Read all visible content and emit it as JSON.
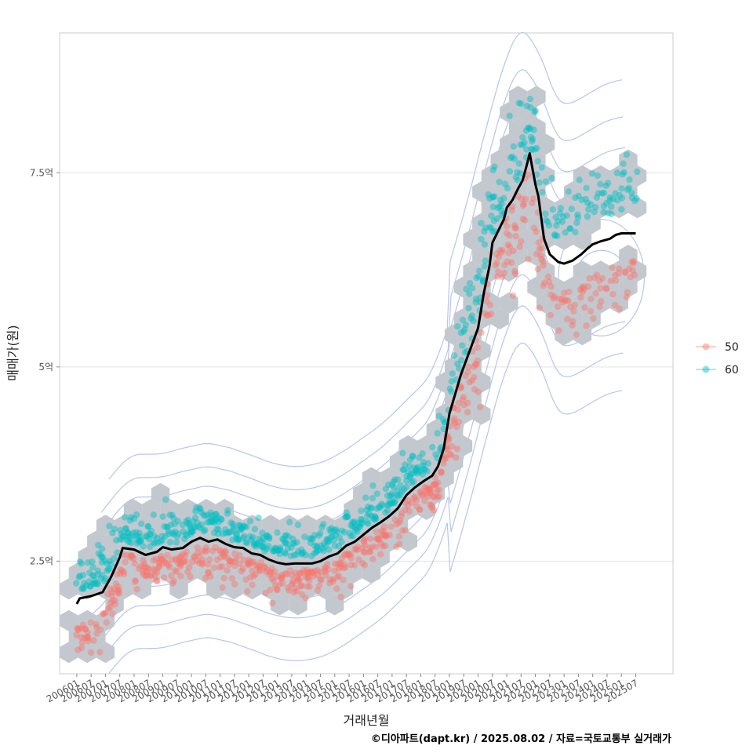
{
  "chart_data": {
    "type": "scatter",
    "xlabel": "거래년월",
    "ylabel": "매매가(원)",
    "caption": "©디아파트(dapt.kr) / 2025.08.02 / 자료=국토교통부 실거래가",
    "y_range": [
      1.05,
      9.3
    ],
    "x_range": [
      2005.4,
      2026.8
    ],
    "y_ticks": [
      {
        "value": 2.5,
        "label": "2.5억"
      },
      {
        "value": 5,
        "label": "5억"
      },
      {
        "value": 7.5,
        "label": "7.5억"
      }
    ],
    "x_ticks": [
      {
        "value": 2006.0,
        "label": "200601"
      },
      {
        "value": 2006.5,
        "label": "200607"
      },
      {
        "value": 2007.0,
        "label": "200701"
      },
      {
        "value": 2007.5,
        "label": "200707"
      },
      {
        "value": 2008.0,
        "label": "200801"
      },
      {
        "value": 2008.5,
        "label": "200807"
      },
      {
        "value": 2009.0,
        "label": "200901"
      },
      {
        "value": 2009.5,
        "label": "200907"
      },
      {
        "value": 2010.0,
        "label": "201001"
      },
      {
        "value": 2010.5,
        "label": "201007"
      },
      {
        "value": 2011.0,
        "label": "201101"
      },
      {
        "value": 2011.5,
        "label": "201107"
      },
      {
        "value": 2012.0,
        "label": "201201"
      },
      {
        "value": 2012.5,
        "label": "201207"
      },
      {
        "value": 2013.0,
        "label": "201301"
      },
      {
        "value": 2013.5,
        "label": "201307"
      },
      {
        "value": 2014.0,
        "label": "201401"
      },
      {
        "value": 2014.5,
        "label": "201407"
      },
      {
        "value": 2015.0,
        "label": "201501"
      },
      {
        "value": 2015.5,
        "label": "201507"
      },
      {
        "value": 2016.0,
        "label": "201601"
      },
      {
        "value": 2016.5,
        "label": "201607"
      },
      {
        "value": 2017.0,
        "label": "201701"
      },
      {
        "value": 2017.5,
        "label": "201707"
      },
      {
        "value": 2018.0,
        "label": "201801"
      },
      {
        "value": 2018.5,
        "label": "201807"
      },
      {
        "value": 2019.0,
        "label": "201901"
      },
      {
        "value": 2019.5,
        "label": "201907"
      },
      {
        "value": 2020.0,
        "label": "202001"
      },
      {
        "value": 2020.5,
        "label": "202007"
      },
      {
        "value": 2021.0,
        "label": "202101"
      },
      {
        "value": 2021.5,
        "label": "202107"
      },
      {
        "value": 2022.0,
        "label": "202201"
      },
      {
        "value": 2022.5,
        "label": "202207"
      },
      {
        "value": 2023.0,
        "label": "202301"
      },
      {
        "value": 2023.5,
        "label": "202307"
      },
      {
        "value": 2024.0,
        "label": "202401"
      },
      {
        "value": 2024.5,
        "label": "202407"
      },
      {
        "value": 2025.0,
        "label": "202501"
      },
      {
        "value": 2025.5,
        "label": "202507"
      }
    ],
    "legend_position": "right",
    "grid": true,
    "series": [
      {
        "name": "50",
        "color": "#f8766d"
      },
      {
        "name": "60",
        "color": "#00bfc4"
      }
    ],
    "trend_color": "#000000",
    "hexbin_color": "#c3c8ce",
    "contour_color": "#b8c4ee",
    "trend_line": [
      [
        2006.0,
        1.95
      ],
      [
        2006.1,
        2.02
      ],
      [
        2006.5,
        2.05
      ],
      [
        2006.9,
        2.1
      ],
      [
        2007.2,
        2.3
      ],
      [
        2007.5,
        2.55
      ],
      [
        2007.6,
        2.67
      ],
      [
        2008.0,
        2.65
      ],
      [
        2008.4,
        2.58
      ],
      [
        2008.8,
        2.62
      ],
      [
        2009.0,
        2.68
      ],
      [
        2009.3,
        2.65
      ],
      [
        2009.7,
        2.67
      ],
      [
        2010.0,
        2.75
      ],
      [
        2010.3,
        2.8
      ],
      [
        2010.6,
        2.75
      ],
      [
        2010.9,
        2.78
      ],
      [
        2011.2,
        2.72
      ],
      [
        2011.5,
        2.68
      ],
      [
        2011.8,
        2.67
      ],
      [
        2012.1,
        2.6
      ],
      [
        2012.4,
        2.58
      ],
      [
        2012.7,
        2.52
      ],
      [
        2013.0,
        2.48
      ],
      [
        2013.3,
        2.46
      ],
      [
        2013.6,
        2.47
      ],
      [
        2013.9,
        2.47
      ],
      [
        2014.2,
        2.47
      ],
      [
        2014.5,
        2.5
      ],
      [
        2014.8,
        2.56
      ],
      [
        2015.1,
        2.6
      ],
      [
        2015.4,
        2.7
      ],
      [
        2015.7,
        2.75
      ],
      [
        2016.0,
        2.84
      ],
      [
        2016.3,
        2.93
      ],
      [
        2016.6,
        3.0
      ],
      [
        2016.9,
        3.08
      ],
      [
        2017.2,
        3.18
      ],
      [
        2017.5,
        3.35
      ],
      [
        2017.8,
        3.45
      ],
      [
        2018.1,
        3.53
      ],
      [
        2018.4,
        3.6
      ],
      [
        2018.6,
        3.72
      ],
      [
        2018.8,
        3.95
      ],
      [
        2019.0,
        4.4
      ],
      [
        2019.2,
        4.65
      ],
      [
        2019.4,
        4.9
      ],
      [
        2019.6,
        5.1
      ],
      [
        2019.8,
        5.3
      ],
      [
        2020.0,
        5.5
      ],
      [
        2020.2,
        5.95
      ],
      [
        2020.4,
        6.3
      ],
      [
        2020.5,
        6.6
      ],
      [
        2020.7,
        6.75
      ],
      [
        2020.9,
        6.9
      ],
      [
        2021.0,
        7.05
      ],
      [
        2021.2,
        7.15
      ],
      [
        2021.4,
        7.3
      ],
      [
        2021.55,
        7.4
      ],
      [
        2021.7,
        7.6
      ],
      [
        2021.8,
        7.75
      ],
      [
        2021.9,
        7.55
      ],
      [
        2022.0,
        7.35
      ],
      [
        2022.1,
        7.2
      ],
      [
        2022.3,
        6.65
      ],
      [
        2022.5,
        6.45
      ],
      [
        2022.8,
        6.35
      ],
      [
        2023.0,
        6.33
      ],
      [
        2023.3,
        6.37
      ],
      [
        2023.6,
        6.45
      ],
      [
        2023.8,
        6.52
      ],
      [
        2024.0,
        6.58
      ],
      [
        2024.3,
        6.62
      ],
      [
        2024.6,
        6.65
      ],
      [
        2024.8,
        6.7
      ],
      [
        2025.0,
        6.72
      ],
      [
        2025.5,
        6.72
      ]
    ]
  }
}
